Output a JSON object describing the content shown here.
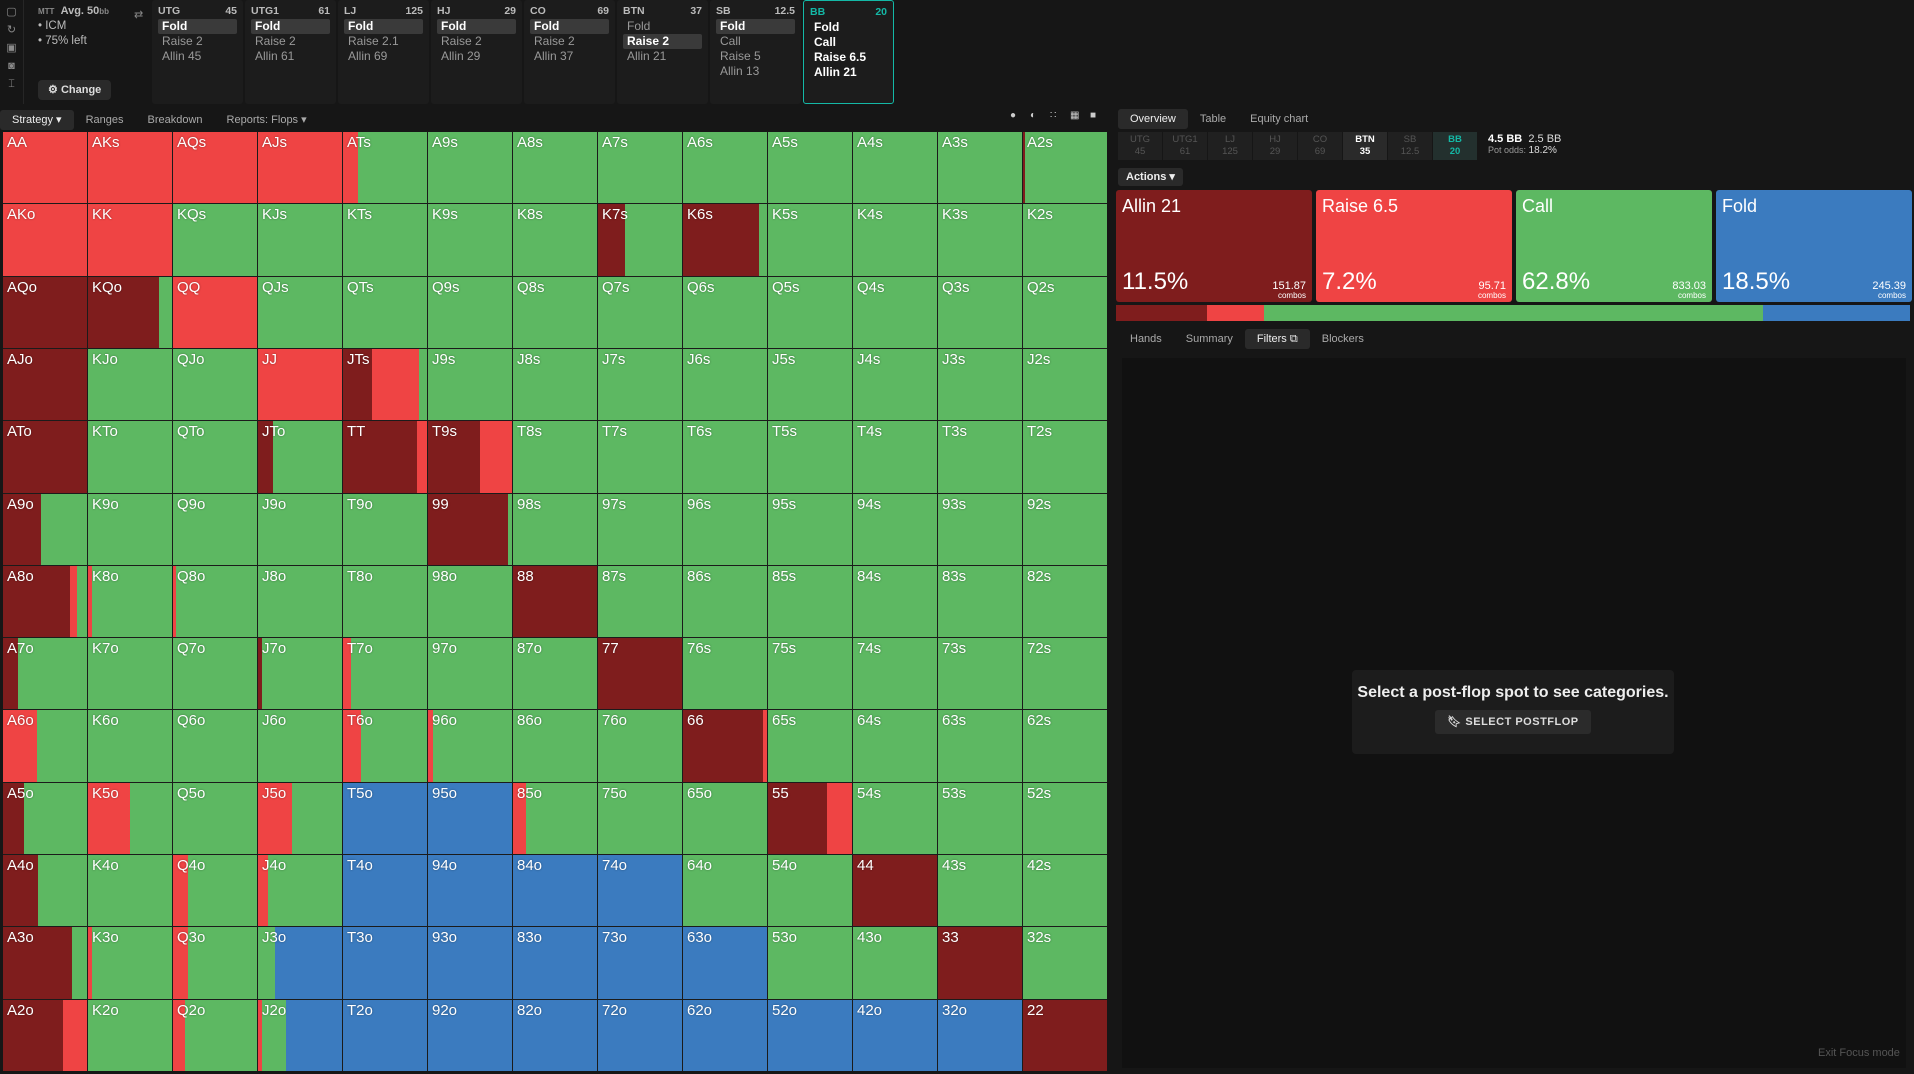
{
  "game": {
    "title": "MTT",
    "avg": "Avg. 50",
    "avg_unit": "bb",
    "items": [
      "• ICM",
      "• 75% left"
    ],
    "change": "Change"
  },
  "positions": [
    {
      "name": "UTG",
      "stack": "45",
      "actions": [
        "Fold",
        "Raise 2",
        "Allin 45"
      ],
      "sel": 0
    },
    {
      "name": "UTG1",
      "stack": "61",
      "actions": [
        "Fold",
        "Raise 2",
        "Allin 61"
      ],
      "sel": 0
    },
    {
      "name": "LJ",
      "stack": "125",
      "actions": [
        "Fold",
        "Raise 2.1",
        "Allin 69"
      ],
      "sel": 0
    },
    {
      "name": "HJ",
      "stack": "29",
      "actions": [
        "Fold",
        "Raise 2",
        "Allin 29"
      ],
      "sel": 0
    },
    {
      "name": "CO",
      "stack": "69",
      "actions": [
        "Fold",
        "Raise 2",
        "Allin 37"
      ],
      "sel": 0
    },
    {
      "name": "BTN",
      "stack": "37",
      "actions": [
        "Fold",
        "Raise 2",
        "Allin 21"
      ],
      "sel": 1
    },
    {
      "name": "SB",
      "stack": "12.5",
      "actions": [
        "Fold",
        "Call",
        "Raise 5",
        "Allin 13"
      ],
      "sel": 0
    },
    {
      "name": "BB",
      "stack": "20",
      "actions": [
        "Fold",
        "Call",
        "Raise 6.5",
        "Allin 21"
      ],
      "sel": -1,
      "active": true
    }
  ],
  "left_tabs": [
    "Strategy",
    "Ranges",
    "Breakdown",
    "Reports: Flops"
  ],
  "right_tabs": [
    "Overview",
    "Table",
    "Equity chart"
  ],
  "strip": [
    {
      "p": "UTG",
      "s": "45"
    },
    {
      "p": "UTG1",
      "s": "61"
    },
    {
      "p": "LJ",
      "s": "125"
    },
    {
      "p": "HJ",
      "s": "29"
    },
    {
      "p": "CO",
      "s": "69"
    },
    {
      "p": "BTN",
      "s": "35"
    },
    {
      "p": "SB",
      "s": "12.5"
    },
    {
      "p": "BB",
      "s": "20"
    }
  ],
  "pot": {
    "a": "4.5 BB",
    "b": "2.5 BB",
    "odds_label": "Pot odds:",
    "odds": "18.2%"
  },
  "actions_label": "Actions",
  "action_cards": [
    {
      "name": "Allin 21",
      "pct": "11.5%",
      "combos": "151.87",
      "color": "#7f1d1d"
    },
    {
      "name": "Raise 6.5",
      "pct": "7.2%",
      "combos": "95.71",
      "color": "#ef4444"
    },
    {
      "name": "Call",
      "pct": "62.8%",
      "combos": "833.03",
      "color": "#5db862"
    },
    {
      "name": "Fold",
      "pct": "18.5%",
      "combos": "245.39",
      "color": "#3b7bbf"
    }
  ],
  "combos_word": "combos",
  "sub_tabs": [
    "Hands",
    "Summary",
    "Filters",
    "Blockers"
  ],
  "empty_msg": "Select a post-flop spot to see categories.",
  "select_postflop": "SELECT POSTFLOP",
  "exit_focus": "Exit Focus mode",
  "grid": [
    [
      "AA",
      "AKs",
      "AQs",
      "AJs",
      "ATs",
      "A9s",
      "A8s",
      "A7s",
      "A6s",
      "A5s",
      "A4s",
      "A3s",
      "A2s"
    ],
    [
      "AKo",
      "KK",
      "KQs",
      "KJs",
      "KTs",
      "K9s",
      "K8s",
      "K7s",
      "K6s",
      "K5s",
      "K4s",
      "K3s",
      "K2s"
    ],
    [
      "AQo",
      "KQo",
      "QQ",
      "QJs",
      "QTs",
      "Q9s",
      "Q8s",
      "Q7s",
      "Q6s",
      "Q5s",
      "Q4s",
      "Q3s",
      "Q2s"
    ],
    [
      "AJo",
      "KJo",
      "QJo",
      "JJ",
      "JTs",
      "J9s",
      "J8s",
      "J7s",
      "J6s",
      "J5s",
      "J4s",
      "J3s",
      "J2s"
    ],
    [
      "ATo",
      "KTo",
      "QTo",
      "JTo",
      "TT",
      "T9s",
      "T8s",
      "T7s",
      "T6s",
      "T5s",
      "T4s",
      "T3s",
      "T2s"
    ],
    [
      "A9o",
      "K9o",
      "Q9o",
      "J9o",
      "T9o",
      "99",
      "98s",
      "97s",
      "96s",
      "95s",
      "94s",
      "93s",
      "92s"
    ],
    [
      "A8o",
      "K8o",
      "Q8o",
      "J8o",
      "T8o",
      "98o",
      "88",
      "87s",
      "86s",
      "85s",
      "84s",
      "83s",
      "82s"
    ],
    [
      "A7o",
      "K7o",
      "Q7o",
      "J7o",
      "T7o",
      "97o",
      "87o",
      "77",
      "76s",
      "75s",
      "74s",
      "73s",
      "72s"
    ],
    [
      "A6o",
      "K6o",
      "Q6o",
      "J6o",
      "T6o",
      "96o",
      "86o",
      "76o",
      "66",
      "65s",
      "64s",
      "63s",
      "62s"
    ],
    [
      "A5o",
      "K5o",
      "Q5o",
      "J5o",
      "T5o",
      "95o",
      "85o",
      "75o",
      "65o",
      "55",
      "54s",
      "53s",
      "52s"
    ],
    [
      "A4o",
      "K4o",
      "Q4o",
      "J4o",
      "T4o",
      "94o",
      "84o",
      "74o",
      "64o",
      "54o",
      "44",
      "43s",
      "42s"
    ],
    [
      "A3o",
      "K3o",
      "Q3o",
      "J3o",
      "T3o",
      "93o",
      "83o",
      "73o",
      "63o",
      "53o",
      "43o",
      "33",
      "32s"
    ],
    [
      "A2o",
      "K2o",
      "Q2o",
      "J2o",
      "T2o",
      "92o",
      "82o",
      "72o",
      "62o",
      "52o",
      "42o",
      "32o",
      "22"
    ]
  ],
  "mix": {
    "AA": [
      0,
      100,
      0,
      0
    ],
    "AKs": [
      0,
      100,
      0,
      0
    ],
    "AQs": [
      0,
      100,
      0,
      0
    ],
    "AJs": [
      0,
      100,
      0,
      0
    ],
    "ATs": [
      0,
      18,
      82,
      0
    ],
    "A2s": [
      2,
      0,
      98,
      0
    ],
    "AKo": [
      0,
      100,
      0,
      0
    ],
    "KK": [
      0,
      100,
      0,
      0
    ],
    "K7s": [
      32,
      0,
      68,
      0
    ],
    "K6s": [
      90,
      0,
      10,
      0
    ],
    "AQo": [
      100,
      0,
      0,
      0
    ],
    "KQo": [
      85,
      0,
      15,
      0
    ],
    "QQ": [
      0,
      100,
      0,
      0
    ],
    "AJo": [
      100,
      0,
      0,
      0
    ],
    "JJ": [
      0,
      100,
      0,
      0
    ],
    "JTs": [
      35,
      55,
      10,
      0
    ],
    "ATo": [
      100,
      0,
      0,
      0
    ],
    "JTo": [
      18,
      0,
      82,
      0
    ],
    "TT": [
      88,
      12,
      0,
      0
    ],
    "T9s": [
      62,
      38,
      0,
      0
    ],
    "A9o": [
      45,
      0,
      55,
      0
    ],
    "99": [
      95,
      0,
      5,
      0
    ],
    "A8o": [
      80,
      8,
      12,
      0
    ],
    "K8o": [
      0,
      5,
      95,
      0
    ],
    "Q8o": [
      0,
      4,
      96,
      0
    ],
    "88": [
      100,
      0,
      0,
      0
    ],
    "A7o": [
      18,
      0,
      82,
      0
    ],
    "J7o": [
      5,
      0,
      95,
      0
    ],
    "T7o": [
      0,
      10,
      90,
      0
    ],
    "77": [
      100,
      0,
      0,
      0
    ],
    "A6o": [
      0,
      40,
      60,
      0
    ],
    "T6o": [
      0,
      22,
      78,
      0
    ],
    "96o": [
      0,
      6,
      94,
      0
    ],
    "66": [
      95,
      5,
      0,
      0
    ],
    "A5o": [
      25,
      0,
      75,
      0
    ],
    "K5o": [
      0,
      50,
      50,
      0
    ],
    "J5o": [
      0,
      40,
      60,
      0
    ],
    "T5o": [
      0,
      0,
      0,
      100
    ],
    "95o": [
      0,
      0,
      0,
      100
    ],
    "85o": [
      0,
      15,
      85,
      0
    ],
    "55": [
      70,
      30,
      0,
      0
    ],
    "A4o": [
      42,
      0,
      58,
      0
    ],
    "Q4o": [
      0,
      18,
      82,
      0
    ],
    "J4o": [
      0,
      12,
      88,
      0
    ],
    "T4o": [
      0,
      0,
      0,
      100
    ],
    "94o": [
      0,
      0,
      0,
      100
    ],
    "84o": [
      0,
      0,
      0,
      100
    ],
    "74o": [
      0,
      0,
      0,
      100
    ],
    "44": [
      100,
      0,
      0,
      0
    ],
    "A3o": [
      82,
      0,
      18,
      0
    ],
    "K3o": [
      0,
      5,
      95,
      0
    ],
    "Q3o": [
      0,
      18,
      82,
      0
    ],
    "J3o": [
      0,
      0,
      20,
      80
    ],
    "T3o": [
      0,
      0,
      0,
      100
    ],
    "93o": [
      0,
      0,
      0,
      100
    ],
    "83o": [
      0,
      0,
      0,
      100
    ],
    "73o": [
      0,
      0,
      0,
      100
    ],
    "63o": [
      0,
      0,
      0,
      100
    ],
    "33": [
      100,
      0,
      0,
      0
    ],
    "A2o": [
      72,
      28,
      0,
      0
    ],
    "K2o": [
      0,
      0,
      100,
      0
    ],
    "Q2o": [
      0,
      14,
      86,
      0
    ],
    "J2o": [
      0,
      5,
      28,
      67
    ],
    "T2o": [
      0,
      0,
      0,
      100
    ],
    "92o": [
      0,
      0,
      0,
      100
    ],
    "82o": [
      0,
      0,
      0,
      100
    ],
    "72o": [
      0,
      0,
      0,
      100
    ],
    "62o": [
      0,
      0,
      0,
      100
    ],
    "52o": [
      0,
      0,
      0,
      100
    ],
    "42o": [
      0,
      0,
      0,
      100
    ],
    "32o": [
      0,
      0,
      0,
      100
    ],
    "22": [
      100,
      0,
      0,
      0
    ]
  },
  "freq_bar": [
    11.5,
    7.2,
    62.8,
    18.5
  ],
  "colors": {
    "allin": "#7f1d1d",
    "raise": "#ef4444",
    "call": "#5db862",
    "fold": "#3b7bbf",
    "accent": "#14b8a6"
  }
}
